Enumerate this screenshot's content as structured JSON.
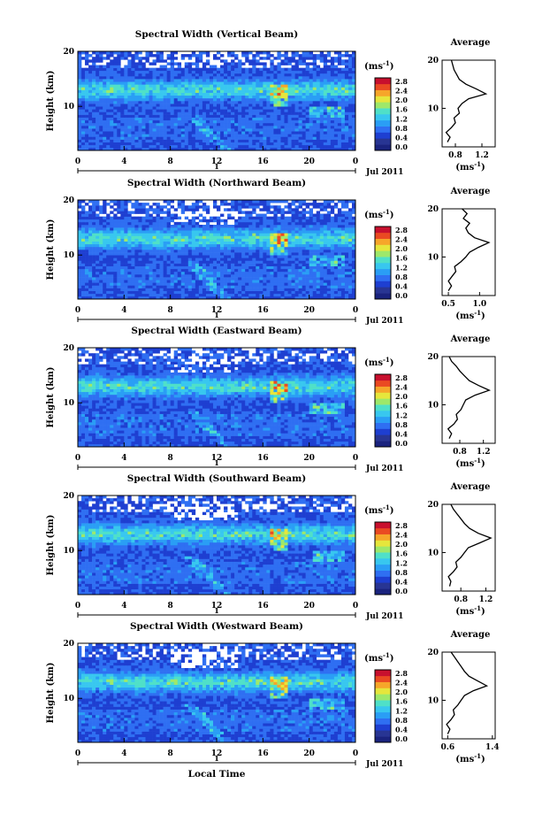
{
  "figure": {
    "xlabel": "Local Time",
    "date_label": "Jul 2011",
    "day_label": "1",
    "colorbar_unit": "(ms",
    "colorbar_unit_exp": "-1",
    "colorbar_unit_close": ")",
    "colorbar_ticks": [
      "0.0",
      "0.4",
      "0.8",
      "1.2",
      "1.6",
      "2.0",
      "2.4",
      "2.8"
    ],
    "colormap": [
      "#1a237e",
      "#283593",
      "#1e3fd1",
      "#2f6ff2",
      "#2a9ef5",
      "#38c7ef",
      "#4fe0c8",
      "#9ee86a",
      "#e6e63c",
      "#f6a62a",
      "#ea4a22",
      "#c8102e"
    ],
    "average_title": "Average",
    "average_xlabel": "(ms",
    "average_xlabel_exp": "-1",
    "average_xlabel_close": ")"
  },
  "chart_data": [
    {
      "type": "heatmap",
      "title": "Spectral Width (Vertical Beam)",
      "ylabel": "Height (km)",
      "xlim": [
        0,
        24
      ],
      "xticks": [
        "0",
        "4",
        "8",
        "12",
        "16",
        "20",
        "0"
      ],
      "ylim": [
        2,
        20
      ],
      "yticks": [
        "10",
        "20"
      ],
      "color_range": [
        0.0,
        3.0
      ],
      "average": {
        "xlim": [
          0.6,
          1.4
        ],
        "xticks": [
          "0.8",
          "1.2"
        ],
        "profile": [
          [
            0.68,
            3
          ],
          [
            0.72,
            4
          ],
          [
            0.66,
            5
          ],
          [
            0.74,
            6
          ],
          [
            0.8,
            7
          ],
          [
            0.78,
            8
          ],
          [
            0.86,
            9
          ],
          [
            0.84,
            10
          ],
          [
            0.9,
            11
          ],
          [
            1.0,
            12
          ],
          [
            1.26,
            13
          ],
          [
            1.12,
            14
          ],
          [
            0.96,
            15
          ],
          [
            0.86,
            16
          ],
          [
            0.82,
            17
          ],
          [
            0.78,
            18
          ],
          [
            0.76,
            19
          ],
          [
            0.74,
            20
          ]
        ]
      }
    },
    {
      "type": "heatmap",
      "title": "Spectral Width (Northward Beam)",
      "ylabel": "Height (km)",
      "xlim": [
        0,
        24
      ],
      "xticks": [
        "0",
        "4",
        "8",
        "12",
        "16",
        "20",
        "0"
      ],
      "ylim": [
        2,
        20
      ],
      "yticks": [
        "10",
        "20"
      ],
      "color_range": [
        0.0,
        3.0
      ],
      "average": {
        "xlim": [
          0.4,
          1.25
        ],
        "xticks": [
          "0.5",
          "1.0"
        ],
        "profile": [
          [
            0.5,
            3
          ],
          [
            0.55,
            4
          ],
          [
            0.5,
            5
          ],
          [
            0.56,
            6
          ],
          [
            0.62,
            7
          ],
          [
            0.6,
            8
          ],
          [
            0.7,
            9
          ],
          [
            0.78,
            10
          ],
          [
            0.84,
            11
          ],
          [
            0.98,
            12
          ],
          [
            1.15,
            13
          ],
          [
            0.92,
            14
          ],
          [
            0.82,
            15
          ],
          [
            0.78,
            16
          ],
          [
            0.84,
            17
          ],
          [
            0.74,
            18
          ],
          [
            0.8,
            19
          ],
          [
            0.72,
            20
          ]
        ]
      }
    },
    {
      "type": "heatmap",
      "title": "Spectral Width (Eastward Beam)",
      "ylabel": "Height (km)",
      "xlim": [
        0,
        24
      ],
      "xticks": [
        "0",
        "4",
        "8",
        "12",
        "16",
        "20",
        "0"
      ],
      "ylim": [
        2,
        20
      ],
      "yticks": [
        "10",
        "20"
      ],
      "color_range": [
        0.0,
        3.0
      ],
      "average": {
        "xlim": [
          0.5,
          1.4
        ],
        "xticks": [
          "0.8",
          "1.2"
        ],
        "profile": [
          [
            0.62,
            3
          ],
          [
            0.66,
            4
          ],
          [
            0.6,
            5
          ],
          [
            0.7,
            6
          ],
          [
            0.76,
            7
          ],
          [
            0.74,
            8
          ],
          [
            0.82,
            9
          ],
          [
            0.86,
            10
          ],
          [
            0.9,
            11
          ],
          [
            1.06,
            12
          ],
          [
            1.3,
            13
          ],
          [
            1.12,
            14
          ],
          [
            0.96,
            15
          ],
          [
            0.88,
            16
          ],
          [
            0.8,
            17
          ],
          [
            0.74,
            18
          ],
          [
            0.66,
            19
          ],
          [
            0.62,
            20
          ]
        ]
      }
    },
    {
      "type": "heatmap",
      "title": "Spectral Width (Southward Beam)",
      "ylabel": "Height (km)",
      "xlim": [
        0,
        24
      ],
      "xticks": [
        "0",
        "4",
        "8",
        "12",
        "16",
        "20",
        "0"
      ],
      "ylim": [
        2,
        20
      ],
      "yticks": [
        "10",
        "20"
      ],
      "color_range": [
        0.0,
        3.0
      ],
      "average": {
        "xlim": [
          0.5,
          1.35
        ],
        "xticks": [
          "0.8",
          "1.2"
        ],
        "profile": [
          [
            0.62,
            3
          ],
          [
            0.64,
            4
          ],
          [
            0.6,
            5
          ],
          [
            0.68,
            6
          ],
          [
            0.74,
            7
          ],
          [
            0.72,
            8
          ],
          [
            0.8,
            9
          ],
          [
            0.86,
            10
          ],
          [
            0.92,
            11
          ],
          [
            1.1,
            12
          ],
          [
            1.28,
            13
          ],
          [
            1.08,
            14
          ],
          [
            0.94,
            15
          ],
          [
            0.86,
            16
          ],
          [
            0.8,
            17
          ],
          [
            0.74,
            18
          ],
          [
            0.68,
            19
          ],
          [
            0.64,
            20
          ]
        ]
      }
    },
    {
      "type": "heatmap",
      "title": "Spectral Width (Westward Beam)",
      "ylabel": "Height (km)",
      "xlim": [
        0,
        24
      ],
      "xticks": [
        "0",
        "4",
        "8",
        "12",
        "16",
        "20",
        "0"
      ],
      "ylim": [
        2,
        20
      ],
      "yticks": [
        "10",
        "20"
      ],
      "color_range": [
        0.0,
        3.0
      ],
      "average": {
        "xlim": [
          0.5,
          1.45
        ],
        "xticks": [
          "0.6",
          "1.4"
        ],
        "profile": [
          [
            0.6,
            3
          ],
          [
            0.64,
            4
          ],
          [
            0.58,
            5
          ],
          [
            0.66,
            6
          ],
          [
            0.72,
            7
          ],
          [
            0.7,
            8
          ],
          [
            0.78,
            9
          ],
          [
            0.84,
            10
          ],
          [
            0.9,
            11
          ],
          [
            1.06,
            12
          ],
          [
            1.3,
            13
          ],
          [
            1.14,
            14
          ],
          [
            0.98,
            15
          ],
          [
            0.9,
            16
          ],
          [
            0.84,
            17
          ],
          [
            0.78,
            18
          ],
          [
            0.72,
            19
          ],
          [
            0.66,
            20
          ]
        ]
      }
    }
  ]
}
